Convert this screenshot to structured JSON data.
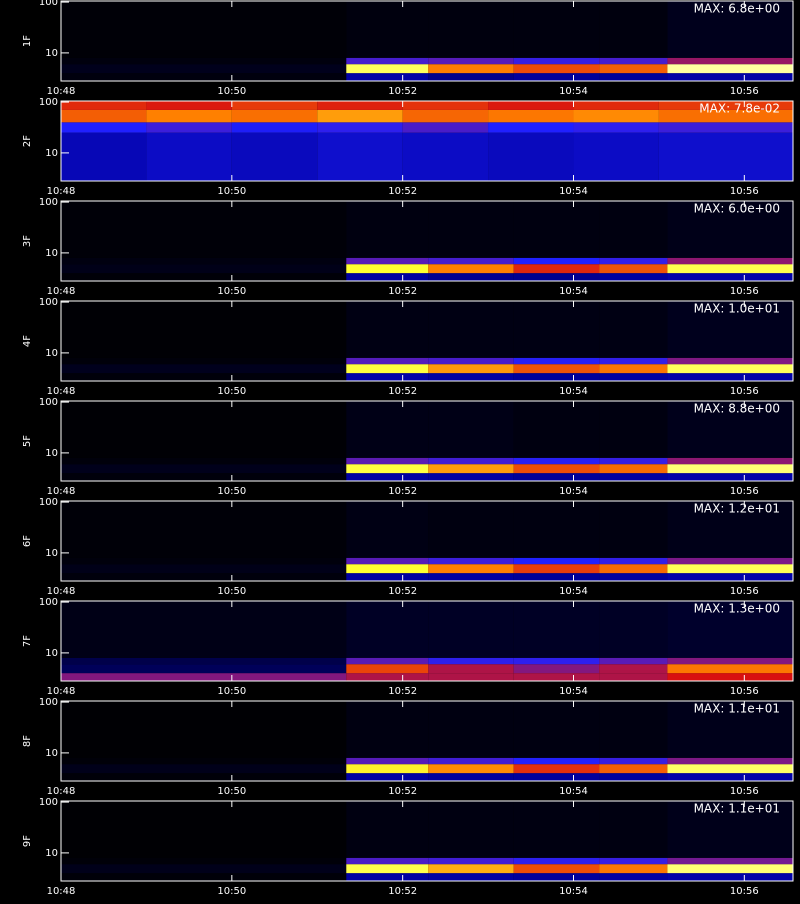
{
  "chart_data": [
    {
      "type": "heatmap",
      "ylabel": "1F",
      "annotation": "MAX: 6.8e+00",
      "log_y": true,
      "xlim": [
        648,
        656.57
      ],
      "xticks": [
        {
          "value": 648,
          "label": "10:48"
        },
        {
          "value": 650,
          "label": "10:50"
        },
        {
          "value": 652,
          "label": "10:52"
        },
        {
          "value": 654,
          "label": "10:54"
        },
        {
          "value": 656,
          "label": "10:56"
        }
      ],
      "ylim": [
        2.8,
        105
      ],
      "yticks": [
        10,
        100
      ],
      "zlim": [
        0,
        6.8
      ],
      "colormap": [
        "#000000",
        "#0000a0",
        "#2020ff",
        "#d81010",
        "#ff8000",
        "#ffff30",
        "#ffffc8"
      ],
      "x_edges": [
        648,
        651.34,
        652.3,
        653.3,
        654.3,
        655.1,
        656.57
      ],
      "y_edges": [
        2.8,
        4,
        6,
        8,
        105
      ],
      "z": [
        [
          0.1,
          1.2,
          1.0,
          1.1,
          1.1,
          1.2
        ],
        [
          0.2,
          6.0,
          4.5,
          4.0,
          4.2,
          6.5
        ],
        [
          0.1,
          2.5,
          2.6,
          2.4,
          2.5,
          3.0
        ],
        [
          0.05,
          0.1,
          0.1,
          0.1,
          0.1,
          0.2
        ]
      ]
    },
    {
      "type": "heatmap",
      "ylabel": "2F",
      "annotation": "MAX: 7.8e-02",
      "log_y": true,
      "xlim": [
        648,
        656.57
      ],
      "xticks": [
        {
          "value": 648,
          "label": "10:48"
        },
        {
          "value": 650,
          "label": "10:50"
        },
        {
          "value": 652,
          "label": "10:52"
        },
        {
          "value": 654,
          "label": "10:54"
        },
        {
          "value": 656,
          "label": "10:56"
        }
      ],
      "ylim": [
        2.8,
        105
      ],
      "yticks": [
        10,
        100
      ],
      "zlim": [
        0,
        0.078
      ],
      "colormap": [
        "#000000",
        "#0000a0",
        "#2020ff",
        "#d81010",
        "#ff8000",
        "#ffff30",
        "#ffffc8"
      ],
      "x_edges": [
        648,
        649,
        650,
        651,
        652,
        653,
        654,
        655,
        656.57
      ],
      "y_edges": [
        2.8,
        25,
        40,
        70,
        105
      ],
      "z": [
        [
          0.016,
          0.018,
          0.017,
          0.019,
          0.018,
          0.017,
          0.018,
          0.019
        ],
        [
          0.026,
          0.028,
          0.025,
          0.027,
          0.029,
          0.026,
          0.027,
          0.028
        ],
        [
          0.048,
          0.052,
          0.05,
          0.055,
          0.049,
          0.051,
          0.053,
          0.05
        ],
        [
          0.042,
          0.04,
          0.044,
          0.041,
          0.043,
          0.04,
          0.042,
          0.044
        ]
      ]
    },
    {
      "type": "heatmap",
      "ylabel": "3F",
      "annotation": "MAX: 6.0e+00",
      "log_y": true,
      "xlim": [
        648,
        656.57
      ],
      "xticks": [
        {
          "value": 648,
          "label": "10:48"
        },
        {
          "value": 650,
          "label": "10:50"
        },
        {
          "value": 652,
          "label": "10:52"
        },
        {
          "value": 654,
          "label": "10:54"
        },
        {
          "value": 656,
          "label": "10:56"
        }
      ],
      "ylim": [
        2.8,
        105
      ],
      "yticks": [
        10,
        100
      ],
      "zlim": [
        0,
        6.0
      ],
      "colormap": [
        "#000000",
        "#0000a0",
        "#2020ff",
        "#d81010",
        "#ff8000",
        "#ffff30",
        "#ffffc8"
      ],
      "x_edges": [
        648,
        651.34,
        652.3,
        653.3,
        654.3,
        655.1,
        656.57
      ],
      "y_edges": [
        2.8,
        4,
        6,
        8,
        105
      ],
      "z": [
        [
          0.05,
          1.0,
          0.9,
          0.9,
          1.0,
          1.1
        ],
        [
          0.15,
          5.0,
          4.0,
          3.2,
          3.6,
          5.2
        ],
        [
          0.1,
          2.3,
          2.2,
          2.0,
          2.1,
          2.6
        ],
        [
          0.05,
          0.1,
          0.1,
          0.1,
          0.1,
          0.15
        ]
      ]
    },
    {
      "type": "heatmap",
      "ylabel": "4F",
      "annotation": "MAX: 1.0e+01",
      "log_y": true,
      "xlim": [
        648,
        656.57
      ],
      "xticks": [
        {
          "value": 648,
          "label": "10:48"
        },
        {
          "value": 650,
          "label": "10:50"
        },
        {
          "value": 652,
          "label": "10:52"
        },
        {
          "value": 654,
          "label": "10:54"
        },
        {
          "value": 656,
          "label": "10:56"
        }
      ],
      "ylim": [
        2.8,
        105
      ],
      "yticks": [
        10,
        100
      ],
      "zlim": [
        0,
        10
      ],
      "colormap": [
        "#000000",
        "#0000a0",
        "#2020ff",
        "#d81010",
        "#ff8000",
        "#ffff30",
        "#ffffc8"
      ],
      "x_edges": [
        648,
        651.34,
        652.3,
        653.3,
        654.3,
        655.1,
        656.57
      ],
      "y_edges": [
        2.8,
        4,
        6,
        8,
        105
      ],
      "z": [
        [
          0.1,
          1.8,
          1.7,
          1.6,
          1.7,
          1.8
        ],
        [
          0.3,
          8.5,
          7.0,
          6.0,
          6.5,
          8.8
        ],
        [
          0.1,
          3.8,
          3.7,
          3.4,
          3.5,
          4.2
        ],
        [
          0.05,
          0.2,
          0.2,
          0.2,
          0.2,
          0.3
        ]
      ]
    },
    {
      "type": "heatmap",
      "ylabel": "5F",
      "annotation": "MAX: 8.8e+00",
      "log_y": true,
      "xlim": [
        648,
        656.57
      ],
      "xticks": [
        {
          "value": 648,
          "label": "10:48"
        },
        {
          "value": 650,
          "label": "10:50"
        },
        {
          "value": 652,
          "label": "10:52"
        },
        {
          "value": 654,
          "label": "10:54"
        },
        {
          "value": 656,
          "label": "10:56"
        }
      ],
      "ylim": [
        2.8,
        105
      ],
      "yticks": [
        10,
        100
      ],
      "zlim": [
        0,
        8.8
      ],
      "colormap": [
        "#000000",
        "#0000a0",
        "#2020ff",
        "#d81010",
        "#ff8000",
        "#ffff30",
        "#ffffc8"
      ],
      "x_edges": [
        648,
        651.34,
        652.3,
        653.3,
        654.3,
        655.1,
        656.57
      ],
      "y_edges": [
        2.8,
        4,
        6,
        8,
        105
      ],
      "z": [
        [
          0.1,
          1.5,
          1.5,
          1.4,
          1.5,
          1.6
        ],
        [
          0.25,
          7.5,
          6.2,
          5.2,
          5.6,
          8.0
        ],
        [
          0.1,
          3.4,
          3.2,
          3.0,
          3.1,
          3.8
        ],
        [
          0.05,
          0.2,
          0.2,
          0.15,
          0.15,
          0.25
        ]
      ]
    },
    {
      "type": "heatmap",
      "ylabel": "6F",
      "annotation": "MAX: 1.2e+01",
      "log_y": true,
      "xlim": [
        648,
        656.57
      ],
      "xticks": [
        {
          "value": 648,
          "label": "10:48"
        },
        {
          "value": 650,
          "label": "10:50"
        },
        {
          "value": 652,
          "label": "10:52"
        },
        {
          "value": 654,
          "label": "10:54"
        },
        {
          "value": 656,
          "label": "10:56"
        }
      ],
      "ylim": [
        2.8,
        105
      ],
      "yticks": [
        10,
        100
      ],
      "zlim": [
        0,
        12
      ],
      "colormap": [
        "#000000",
        "#0000a0",
        "#2020ff",
        "#d81010",
        "#ff8000",
        "#ffff30",
        "#ffffc8"
      ],
      "x_edges": [
        648,
        651.34,
        652.3,
        653.3,
        654.3,
        655.1,
        656.57
      ],
      "y_edges": [
        2.8,
        4,
        6,
        8,
        105
      ],
      "z": [
        [
          0.15,
          2.0,
          2.0,
          1.9,
          2.0,
          2.2
        ],
        [
          0.3,
          10.0,
          8.0,
          6.8,
          7.6,
          10.5
        ],
        [
          0.15,
          4.6,
          4.3,
          4.0,
          4.2,
          5.0
        ],
        [
          0.1,
          0.25,
          0.2,
          0.2,
          0.2,
          0.3
        ]
      ]
    },
    {
      "type": "heatmap",
      "ylabel": "7F",
      "annotation": "MAX: 1.3e+00",
      "log_y": true,
      "xlim": [
        648,
        656.57
      ],
      "xticks": [
        {
          "value": 648,
          "label": "10:48"
        },
        {
          "value": 650,
          "label": "10:50"
        },
        {
          "value": 652,
          "label": "10:52"
        },
        {
          "value": 654,
          "label": "10:54"
        },
        {
          "value": 656,
          "label": "10:56"
        }
      ],
      "ylim": [
        2.8,
        105
      ],
      "yticks": [
        10,
        100
      ],
      "zlim": [
        0,
        1.3
      ],
      "colormap": [
        "#000000",
        "#0000a0",
        "#2020ff",
        "#d81010",
        "#ff8000",
        "#ffff30",
        "#ffffc8"
      ],
      "x_edges": [
        648,
        651.34,
        652.3,
        653.3,
        654.3,
        655.1,
        656.57
      ],
      "y_edges": [
        2.8,
        4,
        6,
        8,
        105
      ],
      "z": [
        [
          0.55,
          0.6,
          0.6,
          0.6,
          0.6,
          0.65
        ],
        [
          0.12,
          0.75,
          0.6,
          0.55,
          0.6,
          0.85
        ],
        [
          0.1,
          0.5,
          0.45,
          0.45,
          0.5,
          0.55
        ],
        [
          0.03,
          0.05,
          0.05,
          0.05,
          0.05,
          0.06
        ]
      ]
    },
    {
      "type": "heatmap",
      "ylabel": "8F",
      "annotation": "MAX: 1.1e+01",
      "log_y": true,
      "xlim": [
        648,
        656.57
      ],
      "xticks": [
        {
          "value": 648,
          "label": "10:48"
        },
        {
          "value": 650,
          "label": "10:50"
        },
        {
          "value": 652,
          "label": "10:52"
        },
        {
          "value": 654,
          "label": "10:54"
        },
        {
          "value": 656,
          "label": "10:56"
        }
      ],
      "ylim": [
        2.8,
        105
      ],
      "yticks": [
        10,
        100
      ],
      "zlim": [
        0,
        11
      ],
      "colormap": [
        "#000000",
        "#0000a0",
        "#2020ff",
        "#d81010",
        "#ff8000",
        "#ffff30",
        "#ffffc8"
      ],
      "x_edges": [
        648,
        651.34,
        652.3,
        653.3,
        654.3,
        655.1,
        656.57
      ],
      "y_edges": [
        2.8,
        4,
        6,
        8,
        105
      ],
      "z": [
        [
          0.1,
          1.9,
          1.8,
          1.8,
          1.8,
          2.0
        ],
        [
          0.3,
          9.0,
          7.5,
          6.0,
          6.8,
          9.8
        ],
        [
          0.1,
          4.2,
          4.0,
          3.7,
          3.9,
          4.6
        ],
        [
          0.05,
          0.2,
          0.2,
          0.2,
          0.2,
          0.3
        ]
      ]
    },
    {
      "type": "heatmap",
      "ylabel": "9F",
      "annotation": "MAX: 1.1e+01",
      "log_y": true,
      "xlim": [
        648,
        656.57
      ],
      "xticks": [
        {
          "value": 648,
          "label": "10:48"
        },
        {
          "value": 650,
          "label": "10:50"
        },
        {
          "value": 652,
          "label": "10:52"
        },
        {
          "value": 654,
          "label": "10:54"
        },
        {
          "value": 656,
          "label": "10:56"
        }
      ],
      "ylim": [
        2.8,
        105
      ],
      "yticks": [
        10,
        100
      ],
      "zlim": [
        0,
        11
      ],
      "colormap": [
        "#000000",
        "#0000a0",
        "#2020ff",
        "#d81010",
        "#ff8000",
        "#ffff30",
        "#ffffc8"
      ],
      "x_edges": [
        648,
        651.34,
        652.3,
        653.3,
        654.3,
        655.1,
        656.57
      ],
      "y_edges": [
        2.8,
        4,
        6,
        8,
        105
      ],
      "z": [
        [
          0.1,
          1.9,
          1.9,
          1.8,
          1.9,
          2.0
        ],
        [
          0.3,
          9.5,
          8.0,
          6.5,
          7.2,
          10.0
        ],
        [
          0.1,
          4.1,
          4.0,
          3.8,
          3.9,
          4.5
        ],
        [
          0.05,
          0.2,
          0.2,
          0.2,
          0.2,
          0.3
        ]
      ]
    }
  ]
}
